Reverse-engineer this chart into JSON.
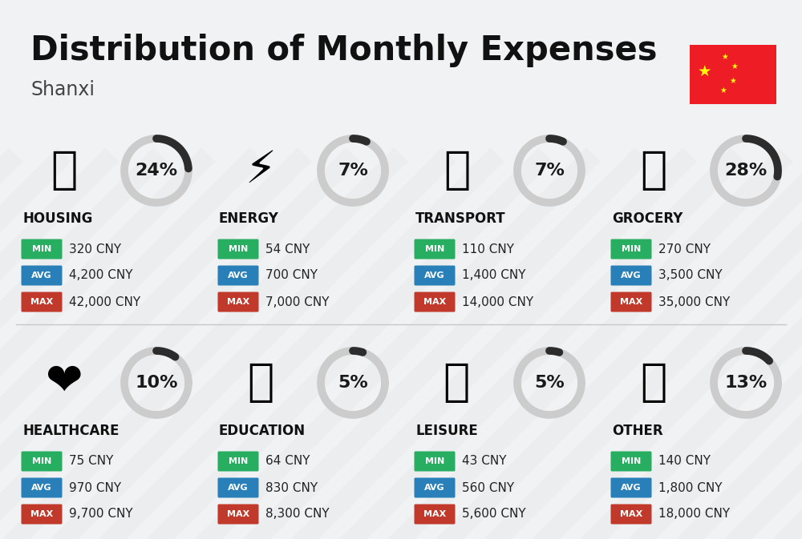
{
  "title": "Distribution of Monthly Expenses",
  "subtitle": "Shanxi",
  "background_color": "#f0f2f4",
  "categories": [
    {
      "name": "HOUSING",
      "percent": 24,
      "min_val": "320 CNY",
      "avg_val": "4,200 CNY",
      "max_val": "42,000 CNY",
      "row": 0,
      "col": 0
    },
    {
      "name": "ENERGY",
      "percent": 7,
      "min_val": "54 CNY",
      "avg_val": "700 CNY",
      "max_val": "7,000 CNY",
      "row": 0,
      "col": 1
    },
    {
      "name": "TRANSPORT",
      "percent": 7,
      "min_val": "110 CNY",
      "avg_val": "1,400 CNY",
      "max_val": "14,000 CNY",
      "row": 0,
      "col": 2
    },
    {
      "name": "GROCERY",
      "percent": 28,
      "min_val": "270 CNY",
      "avg_val": "3,500 CNY",
      "max_val": "35,000 CNY",
      "row": 0,
      "col": 3
    },
    {
      "name": "HEALTHCARE",
      "percent": 10,
      "min_val": "75 CNY",
      "avg_val": "970 CNY",
      "max_val": "9,700 CNY",
      "row": 1,
      "col": 0
    },
    {
      "name": "EDUCATION",
      "percent": 5,
      "min_val": "64 CNY",
      "avg_val": "830 CNY",
      "max_val": "8,300 CNY",
      "row": 1,
      "col": 1
    },
    {
      "name": "LEISURE",
      "percent": 5,
      "min_val": "43 CNY",
      "avg_val": "560 CNY",
      "max_val": "5,600 CNY",
      "row": 1,
      "col": 2
    },
    {
      "name": "OTHER",
      "percent": 13,
      "min_val": "140 CNY",
      "avg_val": "1,800 CNY",
      "max_val": "18,000 CNY",
      "row": 1,
      "col": 3
    }
  ],
  "min_color": "#27AE60",
  "avg_color": "#2980B9",
  "max_color": "#C0392B",
  "label_text_color": "#ffffff",
  "value_text_color": "#222222",
  "category_text_color": "#111111",
  "percent_text_color": "#1a1a1a",
  "arc_fg_color": "#2c2c2c",
  "arc_bg_color": "#cccccc",
  "title_fontsize": 30,
  "subtitle_fontsize": 17,
  "category_fontsize": 12,
  "percent_fontsize": 16,
  "label_fontsize": 8,
  "value_fontsize": 11,
  "flag_color": "#EE1C25",
  "flag_star_color": "#FFFF00",
  "divider_color": "#c8c8c8"
}
